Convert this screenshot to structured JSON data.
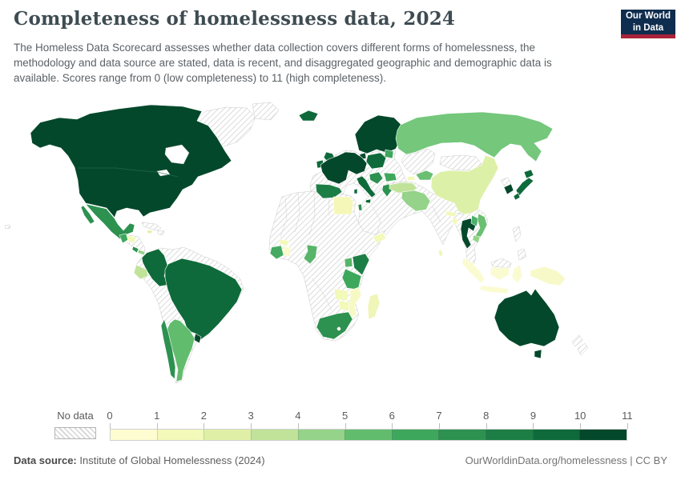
{
  "header": {
    "title": "Completeness of homelessness data, 2024",
    "subtitle": "The Homeless Data Scorecard assesses whether data collection covers different forms of homelessness, the methodology and data source are stated, data is recent, and disaggregated geographic and demographic data is available. Scores range from 0 (low completeness) to 11 (high completeness).",
    "logo": {
      "line1": "Our World",
      "line2": "in Data",
      "bg": "#0f2d4e",
      "accent": "#a82339"
    }
  },
  "legend": {
    "no_data_label": "No data",
    "ticks": [
      "0",
      "1",
      "2",
      "3",
      "4",
      "5",
      "6",
      "7",
      "8",
      "9",
      "10",
      "11"
    ],
    "colors": [
      "#fdfdd1",
      "#f2f9b9",
      "#dff0a6",
      "#c0e399",
      "#94d389",
      "#62bc6e",
      "#3da75c",
      "#2d9150",
      "#1d7e45",
      "#0e6a3a",
      "#03482b"
    ]
  },
  "footer": {
    "source_label": "Data source:",
    "source_text": "Institute of Global Homelessness (2024)",
    "credit": "OurWorldinData.org/homelessness | CC BY"
  },
  "map": {
    "ocean": "#ffffff",
    "no_data_pattern": {
      "background": "#ffffff",
      "stripe": "#d2d2d2"
    },
    "no_data_regions": [
      "Greenland",
      "Cuba",
      "Haiti",
      "Dominican Republic",
      "Nicaragua",
      "Venezuela",
      "Guyana",
      "Suriname",
      "Peru",
      "Bolivia",
      "Paraguay",
      "Portugal",
      "Ukraine",
      "Belarus",
      "Hungary",
      "North Africa and Sahara countries",
      "Saudi Arabia",
      "Iraq",
      "Syria",
      "Kazakhstan",
      "Mongolia",
      "India",
      "Pakistan",
      "Afghanistan",
      "Myanmar",
      "Malaysia",
      "Philippines",
      "North Korea",
      "New Zealand",
      "Horn of Africa",
      "Central Africa"
    ],
    "regions": {
      "canada_usa": {
        "label": "Canada & United States",
        "score": "10-11",
        "color": "#03482b"
      },
      "mexico": {
        "label": "Mexico",
        "score": "7",
        "color": "#2d9150"
      },
      "guatemala": {
        "label": "Guatemala",
        "score": "6",
        "color": "#3da75c"
      },
      "honduras": {
        "label": "Honduras",
        "score": "1",
        "color": "#f2f9b9"
      },
      "costa_rica": {
        "label": "Costa Rica",
        "score": "7",
        "color": "#2d9150"
      },
      "panama": {
        "label": "Panama",
        "score": "4",
        "color": "#94d389"
      },
      "jamaica": {
        "label": "Jamaica",
        "score": "2",
        "color": "#dff0a6"
      },
      "colombia": {
        "label": "Colombia",
        "score": "9",
        "color": "#0e6a3a"
      },
      "ecuador": {
        "label": "Ecuador",
        "score": "3",
        "color": "#c0e399"
      },
      "brazil": {
        "label": "Brazil",
        "score": "9",
        "color": "#0e6a3a"
      },
      "uruguay": {
        "label": "Uruguay",
        "score": "10-11",
        "color": "#03482b"
      },
      "argentina": {
        "label": "Argentina",
        "score": "5",
        "color": "#62bc6e"
      },
      "chile": {
        "label": "Chile",
        "score": "7",
        "color": "#2d9150"
      },
      "iceland": {
        "label": "Iceland",
        "score": "9",
        "color": "#0e6a3a"
      },
      "united_kingdom": {
        "label": "United Kingdom",
        "score": "9",
        "color": "#0e6a3a"
      },
      "ireland": {
        "label": "Ireland",
        "score": "9",
        "color": "#0e6a3a"
      },
      "scandinavia": {
        "label": "Norway, Sweden & Finland",
        "score": "10-11",
        "color": "#03482b"
      },
      "denmark": {
        "label": "Denmark",
        "score": "10-11",
        "color": "#03482b"
      },
      "central_europe": {
        "label": "France, Germany & Central Europe",
        "score": "10-11",
        "color": "#03482b"
      },
      "poland": {
        "label": "Poland",
        "score": "9",
        "color": "#0e6a3a"
      },
      "baltics": {
        "label": "Baltic states",
        "score": "6",
        "color": "#3da75c"
      },
      "spain": {
        "label": "Spain",
        "score": "8",
        "color": "#1d7e45"
      },
      "italy": {
        "label": "Italy",
        "score": "9",
        "color": "#0e6a3a"
      },
      "balkans": {
        "label": "Western Balkans",
        "score": "7",
        "color": "#2d9150"
      },
      "romania": {
        "label": "Romania",
        "score": "6",
        "color": "#3da75c"
      },
      "greece": {
        "label": "Greece",
        "score": "7",
        "color": "#2d9150"
      },
      "turkey": {
        "label": "Turkey",
        "score": "3",
        "color": "#c0e399"
      },
      "georgia": {
        "label": "Georgia",
        "score": "1",
        "color": "#f2f9b9"
      },
      "israel": {
        "label": "Israel",
        "score": "7",
        "color": "#2d9150"
      },
      "russia": {
        "label": "Russia",
        "score": "4-5",
        "color": "#74c77b"
      },
      "central_asia_green": {
        "label": "Turkmenistan & Uzbekistan",
        "score": "5",
        "color": "#6abf72"
      },
      "kyrgyzstan": {
        "label": "Kyrgyzstan",
        "score": "6",
        "color": "#3da75c"
      },
      "china": {
        "label": "China",
        "score": "2",
        "color": "#ddf0a8"
      },
      "nepal": {
        "label": "Nepal",
        "score": "1",
        "color": "#f2f9b9"
      },
      "bangladesh": {
        "label": "Bangladesh",
        "score": "1",
        "color": "#f2f9b9"
      },
      "sri_lanka": {
        "label": "Sri Lanka",
        "score": "1",
        "color": "#eef6c0"
      },
      "iran": {
        "label": "Iran",
        "score": "4",
        "color": "#94d389"
      },
      "yemen": {
        "label": "Yemen",
        "score": "1",
        "color": "#f2f9b9"
      },
      "egypt": {
        "label": "Egypt",
        "score": "1",
        "color": "#f5f7b9"
      },
      "burkina_faso": {
        "label": "Burkina Faso",
        "score": "1",
        "color": "#f2f9b9"
      },
      "ivory_coast": {
        "label": "Cote d'Ivoire",
        "score": "5",
        "color": "#45ab61"
      },
      "ghana": {
        "label": "Ghana",
        "score": "0-1",
        "color": "#fafbc9"
      },
      "cameroon": {
        "label": "Cameroon",
        "score": "5",
        "color": "#57b469"
      },
      "kenya": {
        "label": "Kenya",
        "score": "8",
        "color": "#1d7e45"
      },
      "uganda": {
        "label": "Uganda",
        "score": "5",
        "color": "#57b469"
      },
      "tanzania": {
        "label": "Tanzania",
        "score": "6",
        "color": "#3da75c"
      },
      "zambia": {
        "label": "Zambia",
        "score": "1",
        "color": "#f2f9b9"
      },
      "zimbabwe": {
        "label": "Zimbabwe",
        "score": "1",
        "color": "#f2f9b9"
      },
      "mozambique": {
        "label": "Mozambique",
        "score": "1",
        "color": "#f7f9c4"
      },
      "madagascar": {
        "label": "Madagascar",
        "score": "1",
        "color": "#f0f5b8"
      },
      "south_africa": {
        "label": "South Africa",
        "score": "7",
        "color": "#2d9150"
      },
      "thailand": {
        "label": "Thailand",
        "score": "10-11",
        "color": "#03482b"
      },
      "laos": {
        "label": "Laos",
        "score": "5",
        "color": "#4db06a"
      },
      "vietnam": {
        "label": "Vietnam",
        "score": "5",
        "color": "#6abf72"
      },
      "cambodia": {
        "label": "Cambodia",
        "score": "4",
        "color": "#94d389"
      },
      "south_korea": {
        "label": "South Korea",
        "score": "10-11",
        "color": "#03482b"
      },
      "japan": {
        "label": "Japan",
        "score": "9",
        "color": "#0e6a3a"
      },
      "indonesia": {
        "label": "Indonesia",
        "score": "0-1",
        "color": "#fafbd1"
      },
      "papua_new_guinea": {
        "label": "Papua New Guinea",
        "score": "0-1",
        "color": "#f7f9c9"
      },
      "australia": {
        "label": "Australia",
        "score": "10-11",
        "color": "#03482b"
      }
    }
  }
}
